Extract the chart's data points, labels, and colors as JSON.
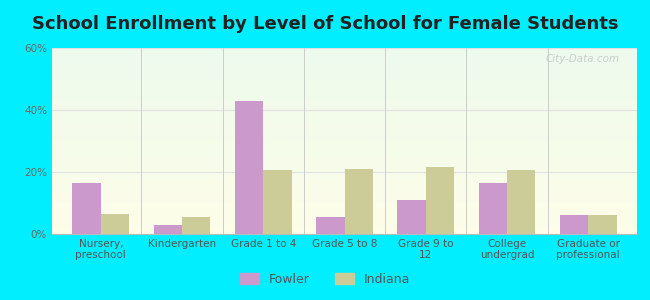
{
  "title": "School Enrollment by Level of School for Female Students",
  "categories": [
    "Nursery,\npreschool",
    "Kindergarten",
    "Grade 1 to 4",
    "Grade 5 to 8",
    "Grade 9 to\n12",
    "College\nundergrad",
    "Graduate or\nprofessional"
  ],
  "fowler_values": [
    16.5,
    3.0,
    43.0,
    5.5,
    11.0,
    16.5,
    6.0
  ],
  "indiana_values": [
    6.5,
    5.5,
    20.5,
    21.0,
    21.5,
    20.5,
    6.0
  ],
  "fowler_color": "#cc99cc",
  "indiana_color": "#cccc99",
  "ylim": [
    0,
    60
  ],
  "yticks": [
    0,
    20,
    40,
    60
  ],
  "ytick_labels": [
    "0%",
    "20%",
    "40%",
    "60%"
  ],
  "background_color": "#00eeff",
  "grid_color": "#e0e0e0",
  "title_fontsize": 13,
  "tick_fontsize": 7.5,
  "legend_fontsize": 9,
  "bar_width": 0.35,
  "watermark": "City-Data.com"
}
